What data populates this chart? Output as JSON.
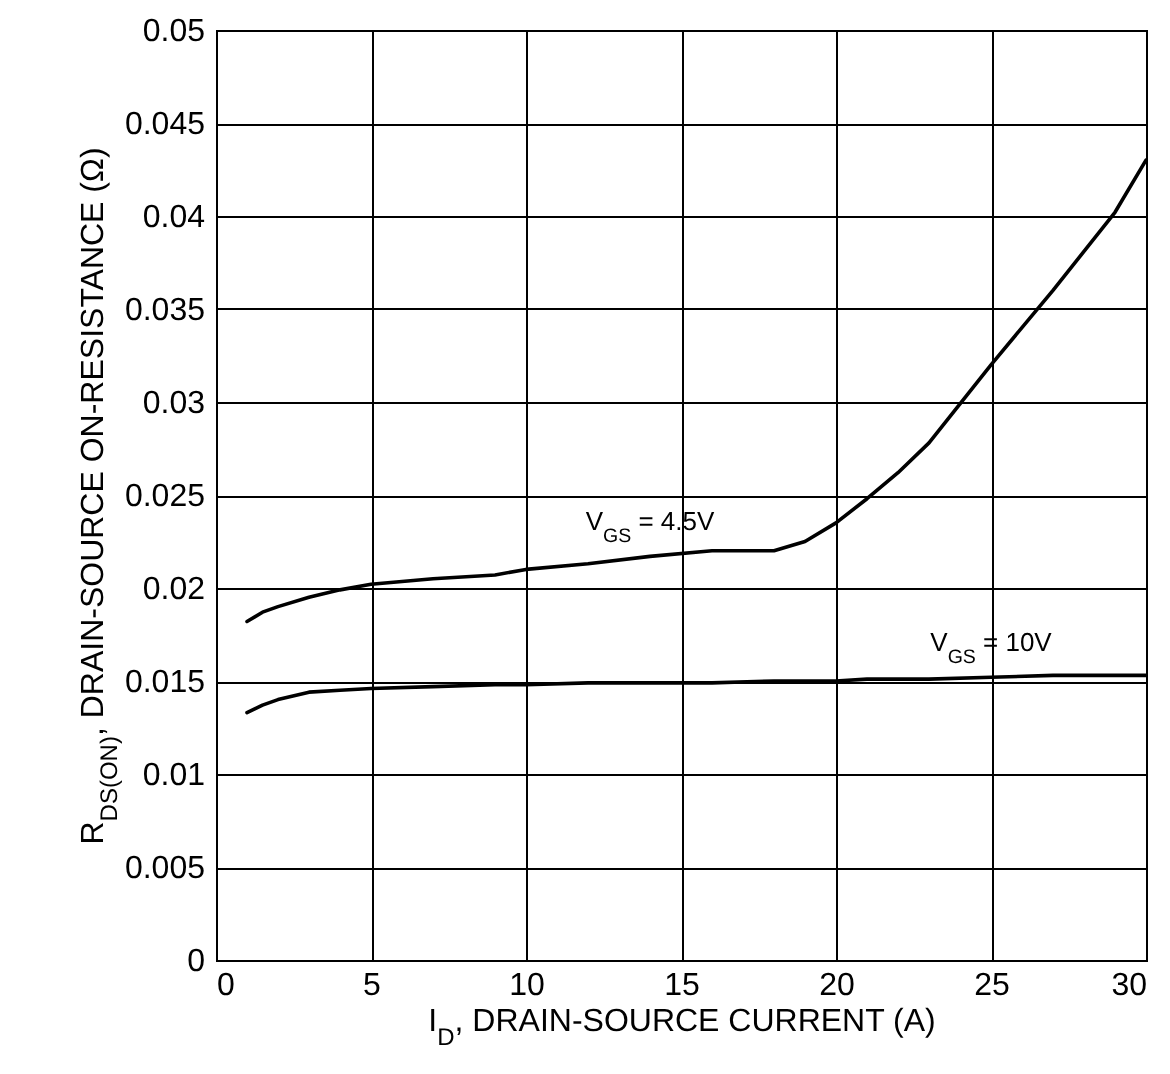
{
  "chart_data": {
    "type": "line",
    "xlabel": "I$_{D}$, DRAIN-SOURCE CURRENT (A)",
    "ylabel": "R$_{DS(ON)}$, DRAIN-SOURCE ON-RESISTANCE (Ω)",
    "x": [
      1,
      1.5,
      2,
      3,
      4,
      5,
      7,
      9,
      10,
      12,
      14,
      16,
      18,
      19,
      20,
      21,
      22,
      23,
      25,
      27,
      29,
      30
    ],
    "series": [
      {
        "color": "#000000",
        "values": [
          0.0182,
          0.0187,
          0.019,
          0.0195,
          0.0199,
          0.0202,
          0.0205,
          0.0207,
          0.021,
          0.0213,
          0.0217,
          0.022,
          0.022,
          0.0225,
          0.0235,
          0.0248,
          0.0262,
          0.0278,
          0.032,
          0.036,
          0.0402,
          0.043
        ]
      },
      {
        "color": "#000000",
        "values": [
          0.0133,
          0.0137,
          0.014,
          0.0144,
          0.0145,
          0.0146,
          0.0147,
          0.0148,
          0.0148,
          0.0149,
          0.0149,
          0.0149,
          0.015,
          0.015,
          0.015,
          0.0151,
          0.0151,
          0.0151,
          0.0152,
          0.0153,
          0.0153,
          0.0153
        ]
      }
    ],
    "annotations": [
      {
        "text": "V$_{GS}$ = 4.5V",
        "x": 14,
        "y": 0.0217
      },
      {
        "text": "V$_{GS}$ = 10V",
        "x": 25,
        "y": 0.0152
      }
    ],
    "xlim": [
      0,
      30
    ],
    "xticks": [
      0,
      5,
      10,
      15,
      20,
      25,
      30
    ],
    "ylim": [
      0,
      0.05
    ],
    "yticks": [
      0,
      0.005,
      0.01,
      0.015,
      0.02,
      0.025,
      0.03,
      0.035,
      0.04,
      0.045,
      0.05
    ],
    "grid": true,
    "marker": "none",
    "line_style": "solid"
  }
}
